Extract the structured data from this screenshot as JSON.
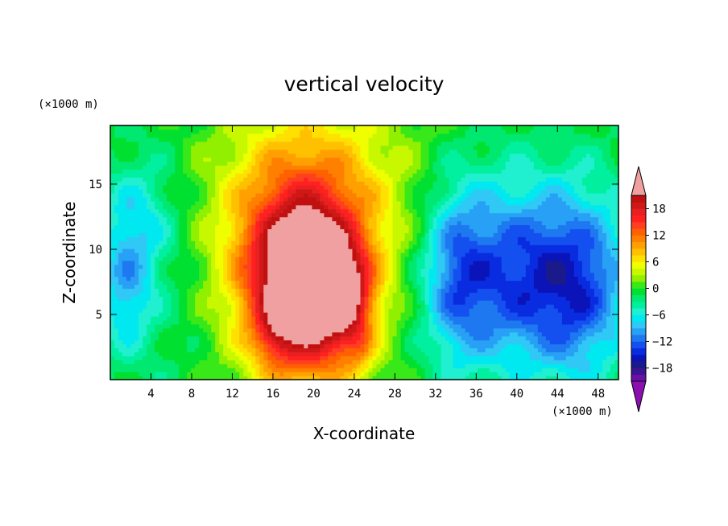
{
  "chart_data": {
    "type": "heatmap",
    "title": "vertical velocity",
    "xlabel": "X-coordinate",
    "ylabel": "Z-coordinate",
    "x_units": "(×1000 m)",
    "y_units": "(×1000 m)",
    "xlim": [
      0,
      50
    ],
    "ylim": [
      0,
      19.5
    ],
    "x_ticks": [
      4,
      8,
      12,
      16,
      20,
      24,
      28,
      32,
      36,
      40,
      44,
      48
    ],
    "x_tick_labels": [
      "4",
      "8",
      "12",
      "16",
      "20",
      "24",
      "28",
      "32",
      "36",
      "40",
      "44",
      "48"
    ],
    "y_ticks": [
      5,
      10,
      15
    ],
    "y_tick_labels": [
      "5",
      "10",
      "15"
    ],
    "colorbar": {
      "levels": [
        -21,
        -19.5,
        -18,
        -16.5,
        -15,
        -13.5,
        -12,
        -10.5,
        -9,
        -7.5,
        -6,
        -4.5,
        -3,
        -1.5,
        0,
        1.5,
        3,
        4.5,
        6,
        7.5,
        9,
        10.5,
        12,
        13.5,
        15,
        16.5,
        18,
        19.5,
        21
      ],
      "tick_values": [
        18,
        12,
        6,
        0,
        -6,
        -12,
        -18
      ],
      "tick_labels": [
        "18",
        "12",
        "6",
        "0",
        "−6",
        "−12",
        "−18"
      ],
      "under_color": "#8b0fb0",
      "over_color": "#f0a0a0",
      "colors": [
        "#6a0fa8",
        "#3a1590",
        "#1a1a8a",
        "#0a14b8",
        "#0a2ce0",
        "#1450f0",
        "#1e78f0",
        "#28a0f5",
        "#30c8f5",
        "#00e8f0",
        "#20f0d0",
        "#00f0a0",
        "#00e870",
        "#00e030",
        "#38e818",
        "#90f000",
        "#c8f800",
        "#f0ff00",
        "#ffe000",
        "#ffc000",
        "#ffa000",
        "#ff8000",
        "#ff6000",
        "#ff4020",
        "#ff2020",
        "#e82020",
        "#d01818",
        "#c01010"
      ]
    },
    "features": [
      {
        "x": 19,
        "z": 7,
        "sx": 3.5,
        "sz": 4.5,
        "amp": 22
      },
      {
        "x": 19.5,
        "z": 10,
        "sx": 6,
        "sz": 6.5,
        "amp": 9
      },
      {
        "x": 23,
        "z": 6.5,
        "sx": 1.8,
        "sz": 2.5,
        "amp": 11
      },
      {
        "x": 20,
        "z": 13,
        "sx": 8,
        "sz": 6,
        "amp": 5
      },
      {
        "x": 16,
        "z": 3.5,
        "sx": 1.2,
        "sz": 1.5,
        "amp": 4
      },
      {
        "x": 24.5,
        "z": 2.5,
        "sx": 1,
        "sz": 1.5,
        "amp": 4
      },
      {
        "x": 38,
        "z": 8,
        "sx": 5,
        "sz": 5,
        "amp": -10
      },
      {
        "x": 46,
        "z": 7,
        "sx": 3.5,
        "sz": 5,
        "amp": -10
      },
      {
        "x": 34,
        "z": 8,
        "sx": 2,
        "sz": 5,
        "amp": -5
      },
      {
        "x": 42,
        "z": 9,
        "sx": 12,
        "sz": 7,
        "amp": -3
      },
      {
        "x": 2.5,
        "z": 12,
        "sx": 2.5,
        "sz": 3,
        "amp": -5
      },
      {
        "x": 1.5,
        "z": 6.5,
        "sx": 1.8,
        "sz": 3,
        "amp": -6
      },
      {
        "x": 4,
        "z": 9,
        "sx": 5,
        "sz": 9,
        "amp": -3
      }
    ]
  }
}
